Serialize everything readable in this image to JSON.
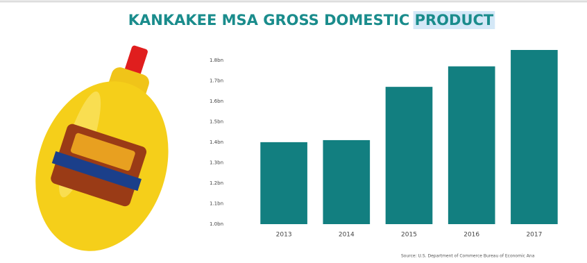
{
  "chart_data": {
    "type": "bar",
    "title": "KANKAKEE MSA GROSS DOMESTIC PRODUCT",
    "categories": [
      "2013",
      "2014",
      "2015",
      "2016",
      "2017"
    ],
    "values": [
      1.4,
      1.41,
      1.67,
      1.77,
      1.85
    ],
    "color": "#127f80",
    "ylim": [
      1.0,
      1.85
    ],
    "yticks": [
      {
        "value": 1.0,
        "label": "1.0bn"
      },
      {
        "value": 1.1,
        "label": "1.1bn"
      },
      {
        "value": 1.2,
        "label": "1.2bn"
      },
      {
        "value": 1.3,
        "label": "1.3bn"
      },
      {
        "value": 1.4,
        "label": "1.4bn"
      },
      {
        "value": 1.5,
        "label": "1.5bn"
      },
      {
        "value": 1.6,
        "label": "1.6bn"
      },
      {
        "value": 1.7,
        "label": "1.7bn"
      },
      {
        "value": 1.8,
        "label": "1.8bn"
      }
    ],
    "grid": false,
    "source": "Source: U.S. Department of Commerce Bureau of Economic Ana"
  }
}
